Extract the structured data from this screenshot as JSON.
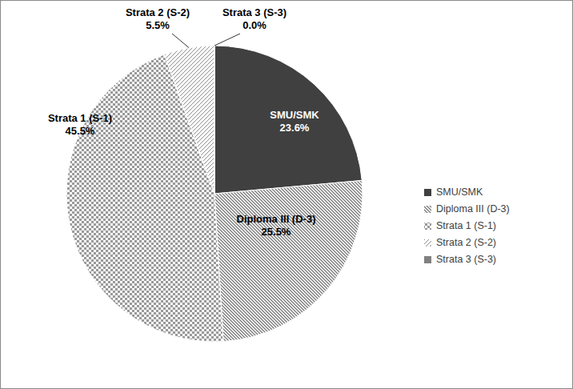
{
  "chart_data": {
    "type": "pie",
    "categories": [
      "SMU/SMK",
      "Diploma III (D-3)",
      "Strata 1 (S-1)",
      "Strata 2 (S-2)",
      "Strata 3 (S-3)"
    ],
    "values": [
      23.6,
      25.5,
      45.5,
      5.5,
      0.0
    ],
    "value_labels": [
      "23.6%",
      "25.5%",
      "45.5%",
      "5.5%",
      "0.0%"
    ],
    "colors": [
      "#404040",
      "#7a7a7a",
      "#9a9a9a",
      "#8c8c8c",
      "#808080"
    ],
    "data_labels": true,
    "legend": "right"
  }
}
